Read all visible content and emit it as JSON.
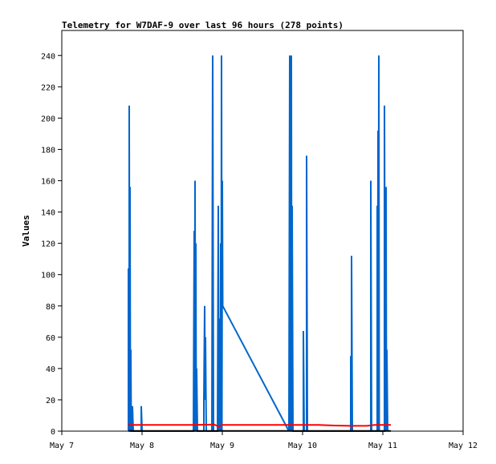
{
  "chart_data": {
    "type": "line",
    "title": "Telemetry for W7DAF-9 over last 96 hours (278 points)",
    "xlabel": "",
    "ylabel": "Values",
    "xlim": [
      7,
      12
    ],
    "ylim": [
      0,
      256
    ],
    "x_ticks": [
      {
        "value": 7,
        "label": "May 7"
      },
      {
        "value": 8,
        "label": "May 8"
      },
      {
        "value": 9,
        "label": "May 9"
      },
      {
        "value": 10,
        "label": "May 10"
      },
      {
        "value": 11,
        "label": "May 11"
      },
      {
        "value": 12,
        "label": "May 12"
      }
    ],
    "y_ticks": [
      0,
      20,
      40,
      60,
      80,
      100,
      120,
      140,
      160,
      180,
      200,
      220,
      240
    ],
    "series": [
      {
        "color": "#0066cc",
        "points": [
          [
            7.83,
            0
          ],
          [
            7.83,
            104
          ],
          [
            7.84,
            0
          ],
          [
            7.84,
            208
          ],
          [
            7.845,
            0
          ],
          [
            7.85,
            156
          ],
          [
            7.855,
            0
          ],
          [
            7.86,
            52
          ],
          [
            7.865,
            0
          ],
          [
            7.88,
            0
          ],
          [
            7.88,
            16
          ],
          [
            7.89,
            0
          ],
          [
            7.9,
            0
          ],
          [
            7.99,
            0
          ],
          [
            7.99,
            16
          ],
          [
            8.0,
            0
          ],
          [
            8.64,
            0
          ],
          [
            8.65,
            128
          ],
          [
            8.655,
            0
          ],
          [
            8.66,
            160
          ],
          [
            8.665,
            0
          ],
          [
            8.67,
            120
          ],
          [
            8.675,
            0
          ],
          [
            8.68,
            40
          ],
          [
            8.69,
            0
          ],
          [
            8.77,
            0
          ],
          [
            8.77,
            20
          ],
          [
            8.78,
            80
          ],
          [
            8.785,
            20
          ],
          [
            8.79,
            60
          ],
          [
            8.8,
            0
          ],
          [
            8.87,
            0
          ],
          [
            8.88,
            240
          ],
          [
            8.89,
            0
          ],
          [
            8.94,
            0
          ],
          [
            8.95,
            144
          ],
          [
            8.955,
            0
          ],
          [
            8.96,
            72
          ],
          [
            8.965,
            0
          ],
          [
            8.97,
            64
          ],
          [
            8.975,
            0
          ],
          [
            8.98,
            120
          ],
          [
            8.985,
            0
          ],
          [
            8.99,
            240
          ],
          [
            8.995,
            0
          ],
          [
            9.0,
            160
          ],
          [
            9.005,
            80
          ],
          [
            9.83,
            0
          ],
          [
            9.84,
            240
          ],
          [
            9.845,
            0
          ],
          [
            9.85,
            120
          ],
          [
            9.855,
            0
          ],
          [
            9.86,
            240
          ],
          [
            9.865,
            0
          ],
          [
            9.87,
            144
          ],
          [
            9.88,
            0
          ],
          [
            10.01,
            0
          ],
          [
            10.01,
            64
          ],
          [
            10.02,
            0
          ],
          [
            10.05,
            0
          ],
          [
            10.05,
            176
          ],
          [
            10.06,
            0
          ],
          [
            10.6,
            0
          ],
          [
            10.6,
            48
          ],
          [
            10.61,
            0
          ],
          [
            10.61,
            112
          ],
          [
            10.62,
            0
          ],
          [
            10.85,
            0
          ],
          [
            10.85,
            160
          ],
          [
            10.86,
            0
          ],
          [
            10.93,
            0
          ],
          [
            10.93,
            144
          ],
          [
            10.935,
            0
          ],
          [
            10.94,
            192
          ],
          [
            10.945,
            0
          ],
          [
            10.95,
            240
          ],
          [
            10.955,
            0
          ],
          [
            11.02,
            0
          ],
          [
            11.02,
            208
          ],
          [
            11.03,
            0
          ],
          [
            11.04,
            156
          ],
          [
            11.045,
            0
          ],
          [
            11.05,
            52
          ],
          [
            11.06,
            0
          ]
        ]
      },
      {
        "color": "#ff0000",
        "points": [
          [
            7.83,
            4
          ],
          [
            7.9,
            4
          ],
          [
            8.0,
            4
          ],
          [
            8.3,
            4
          ],
          [
            8.6,
            4
          ],
          [
            8.9,
            4.2
          ],
          [
            8.95,
            3
          ],
          [
            9.0,
            4
          ],
          [
            9.5,
            4
          ],
          [
            10.0,
            4
          ],
          [
            10.2,
            4
          ],
          [
            10.4,
            3.6
          ],
          [
            10.6,
            3.4
          ],
          [
            10.8,
            3.4
          ],
          [
            10.9,
            4
          ],
          [
            11.1,
            4
          ]
        ]
      },
      {
        "color": "#000000",
        "points": [
          [
            7.83,
            0.1
          ],
          [
            11.1,
            0.1
          ]
        ]
      }
    ]
  }
}
